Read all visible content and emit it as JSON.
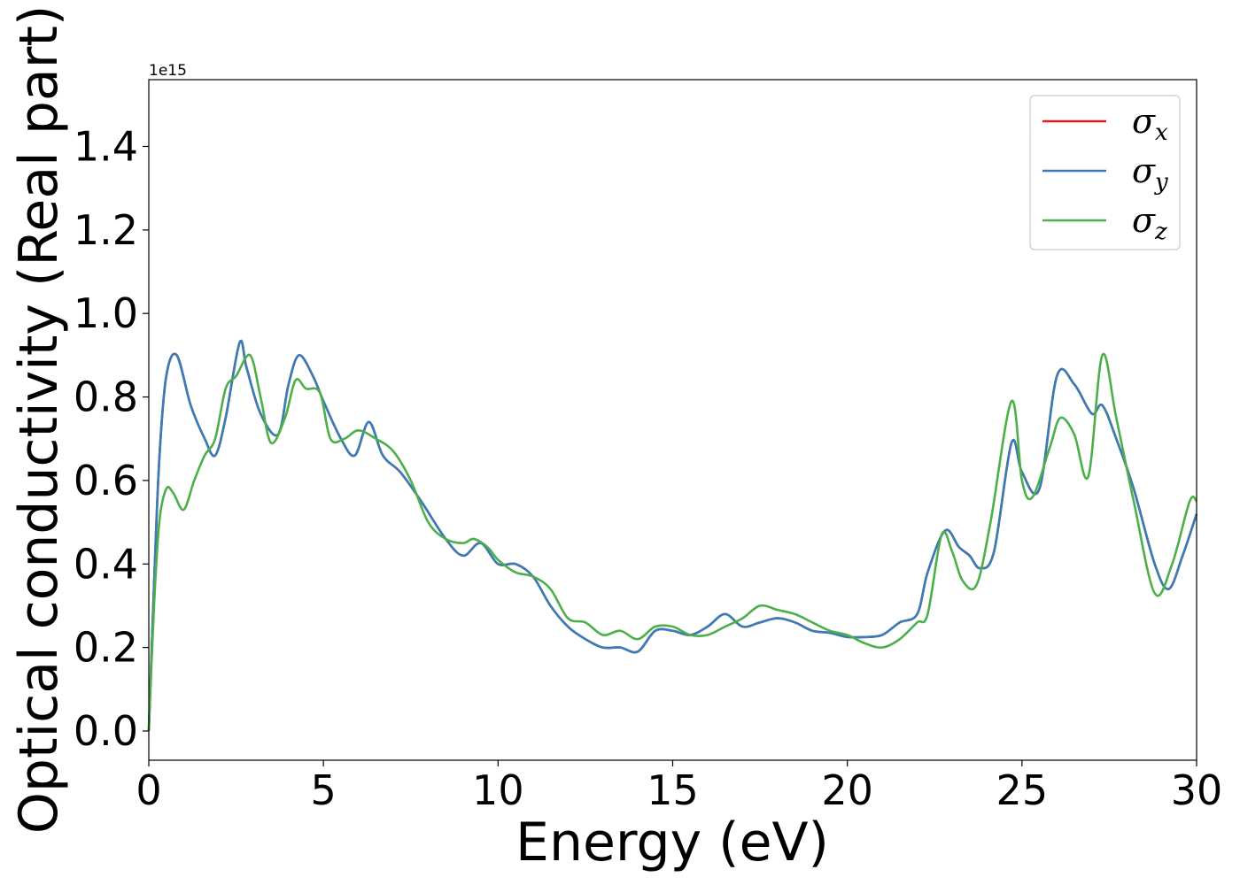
{
  "chart_data": {
    "type": "line",
    "title": "",
    "xlabel": "Energy (eV)",
    "ylabel": "Optical conductivity (Real part)",
    "y_offset_text": "1e15",
    "xlim": [
      0,
      30
    ],
    "ylim": [
      -0.07,
      1.56
    ],
    "x_ticks": [
      0,
      5,
      10,
      15,
      20,
      25,
      30
    ],
    "x_tick_labels": [
      "0",
      "5",
      "10",
      "15",
      "20",
      "25",
      "30"
    ],
    "y_ticks": [
      0.0,
      0.2,
      0.4,
      0.6,
      0.8,
      1.0,
      1.2,
      1.4
    ],
    "y_tick_labels": [
      "0.0",
      "0.2",
      "0.4",
      "0.6",
      "0.8",
      "1.0",
      "1.2",
      "1.4"
    ],
    "grid": false,
    "legend_position": "top-right",
    "series": [
      {
        "name": "σx",
        "symbol": "σ",
        "subscript": "x",
        "color": "#e41a1c",
        "x": [
          0,
          0.15,
          0.3,
          0.5,
          0.8,
          1.2,
          1.6,
          1.9,
          2.2,
          2.6,
          2.8,
          3.2,
          3.7,
          4.0,
          4.3,
          4.7,
          5.0,
          5.5,
          5.9,
          6.3,
          6.7,
          7.2,
          7.8,
          8.5,
          9.0,
          9.5,
          10.0,
          10.5,
          11.0,
          11.5,
          12.0,
          12.5,
          13.0,
          13.5,
          14.0,
          14.5,
          15.0,
          15.5,
          16.0,
          16.5,
          17.0,
          17.5,
          18.0,
          18.5,
          19.0,
          19.5,
          20.0,
          20.5,
          21.0,
          21.5,
          22.0,
          22.3,
          22.8,
          23.2,
          23.5,
          23.8,
          24.2,
          24.7,
          25.0,
          25.5,
          26.0,
          26.5,
          27.0,
          27.3,
          27.7,
          28.2,
          28.8,
          29.2,
          29.6,
          30.0
        ],
        "y": [
          0.0,
          0.35,
          0.65,
          0.85,
          0.9,
          0.78,
          0.7,
          0.66,
          0.75,
          0.93,
          0.87,
          0.76,
          0.71,
          0.83,
          0.9,
          0.85,
          0.79,
          0.7,
          0.66,
          0.74,
          0.66,
          0.62,
          0.55,
          0.46,
          0.42,
          0.45,
          0.4,
          0.4,
          0.37,
          0.3,
          0.25,
          0.22,
          0.2,
          0.2,
          0.19,
          0.24,
          0.24,
          0.23,
          0.25,
          0.28,
          0.25,
          0.26,
          0.27,
          0.26,
          0.24,
          0.235,
          0.225,
          0.225,
          0.23,
          0.26,
          0.28,
          0.38,
          0.48,
          0.44,
          0.42,
          0.39,
          0.43,
          0.69,
          0.62,
          0.58,
          0.85,
          0.83,
          0.76,
          0.78,
          0.7,
          0.58,
          0.4,
          0.34,
          0.42,
          0.52
        ]
      },
      {
        "name": "σy",
        "symbol": "σ",
        "subscript": "y",
        "color": "#377eb8",
        "x": [
          0,
          0.15,
          0.3,
          0.5,
          0.8,
          1.2,
          1.6,
          1.9,
          2.2,
          2.6,
          2.8,
          3.2,
          3.7,
          4.0,
          4.3,
          4.7,
          5.0,
          5.5,
          5.9,
          6.3,
          6.7,
          7.2,
          7.8,
          8.5,
          9.0,
          9.5,
          10.0,
          10.5,
          11.0,
          11.5,
          12.0,
          12.5,
          13.0,
          13.5,
          14.0,
          14.5,
          15.0,
          15.5,
          16.0,
          16.5,
          17.0,
          17.5,
          18.0,
          18.5,
          19.0,
          19.5,
          20.0,
          20.5,
          21.0,
          21.5,
          22.0,
          22.3,
          22.8,
          23.2,
          23.5,
          23.8,
          24.2,
          24.7,
          25.0,
          25.5,
          26.0,
          26.5,
          27.0,
          27.3,
          27.7,
          28.2,
          28.8,
          29.2,
          29.6,
          30.0
        ],
        "y": [
          0.0,
          0.35,
          0.65,
          0.85,
          0.9,
          0.78,
          0.7,
          0.66,
          0.75,
          0.93,
          0.87,
          0.76,
          0.71,
          0.83,
          0.9,
          0.85,
          0.79,
          0.7,
          0.66,
          0.74,
          0.66,
          0.62,
          0.55,
          0.46,
          0.42,
          0.45,
          0.4,
          0.4,
          0.37,
          0.3,
          0.25,
          0.22,
          0.2,
          0.2,
          0.19,
          0.24,
          0.24,
          0.23,
          0.25,
          0.28,
          0.25,
          0.26,
          0.27,
          0.26,
          0.24,
          0.235,
          0.225,
          0.225,
          0.23,
          0.26,
          0.28,
          0.38,
          0.48,
          0.44,
          0.42,
          0.39,
          0.43,
          0.69,
          0.62,
          0.58,
          0.85,
          0.83,
          0.76,
          0.78,
          0.7,
          0.58,
          0.4,
          0.34,
          0.42,
          0.52
        ]
      },
      {
        "name": "σz",
        "symbol": "σ",
        "subscript": "z",
        "color": "#4daf4a",
        "x": [
          0,
          0.15,
          0.3,
          0.5,
          0.7,
          1.0,
          1.3,
          1.6,
          1.9,
          2.2,
          2.5,
          2.9,
          3.2,
          3.5,
          3.9,
          4.2,
          4.5,
          4.9,
          5.2,
          5.6,
          6.0,
          6.5,
          7.0,
          7.5,
          8.0,
          8.5,
          9.0,
          9.3,
          9.7,
          10.0,
          10.5,
          11.0,
          11.5,
          12.0,
          12.5,
          13.0,
          13.5,
          14.0,
          14.5,
          15.0,
          15.5,
          16.0,
          16.5,
          17.0,
          17.5,
          18.0,
          18.5,
          19.0,
          19.5,
          20.0,
          20.5,
          21.0,
          21.5,
          22.0,
          22.3,
          22.7,
          23.0,
          23.3,
          23.7,
          24.1,
          24.7,
          25.0,
          25.3,
          25.8,
          26.1,
          26.5,
          26.9,
          27.3,
          27.7,
          28.2,
          28.8,
          29.3,
          29.8,
          30.0
        ],
        "y": [
          0.0,
          0.3,
          0.5,
          0.58,
          0.57,
          0.53,
          0.6,
          0.66,
          0.7,
          0.82,
          0.85,
          0.9,
          0.8,
          0.69,
          0.75,
          0.84,
          0.82,
          0.81,
          0.7,
          0.7,
          0.72,
          0.7,
          0.67,
          0.6,
          0.5,
          0.46,
          0.45,
          0.46,
          0.44,
          0.41,
          0.38,
          0.37,
          0.34,
          0.27,
          0.26,
          0.23,
          0.24,
          0.22,
          0.25,
          0.25,
          0.23,
          0.23,
          0.25,
          0.27,
          0.3,
          0.29,
          0.28,
          0.26,
          0.24,
          0.23,
          0.21,
          0.2,
          0.22,
          0.26,
          0.28,
          0.47,
          0.43,
          0.36,
          0.35,
          0.5,
          0.79,
          0.6,
          0.56,
          0.68,
          0.75,
          0.71,
          0.61,
          0.9,
          0.75,
          0.55,
          0.33,
          0.4,
          0.55,
          0.55
        ]
      }
    ]
  }
}
